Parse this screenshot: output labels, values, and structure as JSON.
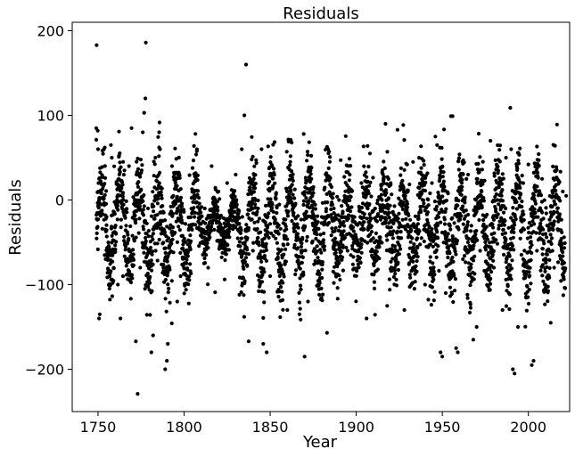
{
  "chart_data": {
    "type": "scatter",
    "title": "Residuals",
    "xlabel": "Year",
    "ylabel": "Residuals",
    "xlim": [
      1735,
      2024
    ],
    "ylim": [
      -250,
      210
    ],
    "xticks": [
      1750,
      1800,
      1850,
      1900,
      1950,
      2000
    ],
    "yticks": [
      -200,
      -100,
      0,
      100,
      200
    ],
    "xtick_labels": [
      "1750",
      "1800",
      "1850",
      "1900",
      "1950",
      "2000"
    ],
    "ytick_labels": [
      "−200",
      "−100",
      "0",
      "100",
      "200"
    ],
    "grid": false,
    "marker_color": "#000000",
    "anchor_points": [
      [
        1749.2,
        183
      ],
      [
        1749.0,
        85
      ],
      [
        1749.8,
        82
      ],
      [
        1750.0,
        60
      ],
      [
        1750.3,
        20
      ],
      [
        1750.6,
        -140
      ],
      [
        1751.0,
        -135
      ],
      [
        1755.0,
        -20
      ],
      [
        1757.5,
        65
      ],
      [
        1758.0,
        50
      ],
      [
        1760.5,
        -40
      ],
      [
        1761.5,
        -100
      ],
      [
        1763.0,
        -140
      ],
      [
        1764.5,
        -90
      ],
      [
        1768.0,
        40
      ],
      [
        1769.5,
        85
      ],
      [
        1772.0,
        -167
      ],
      [
        1773.0,
        -229
      ],
      [
        1774.5,
        -80
      ],
      [
        1776.0,
        80
      ],
      [
        1776.8,
        103
      ],
      [
        1777.5,
        120
      ],
      [
        1777.8,
        186
      ],
      [
        1779.0,
        -10
      ],
      [
        1781.0,
        -180
      ],
      [
        1782.0,
        -160
      ],
      [
        1783.5,
        -60
      ],
      [
        1785.5,
        80
      ],
      [
        1786.0,
        60
      ],
      [
        1786.5,
        15
      ],
      [
        1788.0,
        -80
      ],
      [
        1789.0,
        -200
      ],
      [
        1790.0,
        -190
      ],
      [
        1790.5,
        -170
      ],
      [
        1791.5,
        -80
      ],
      [
        1793.0,
        40
      ],
      [
        1796.0,
        -120
      ],
      [
        1798.0,
        -90
      ],
      [
        1800.0,
        -60
      ],
      [
        1803.0,
        -30
      ],
      [
        1806.0,
        -20
      ],
      [
        1812.0,
        -10
      ],
      [
        1814.0,
        -80
      ],
      [
        1816.0,
        40
      ],
      [
        1818.0,
        -109
      ],
      [
        1820.0,
        10
      ],
      [
        1825.0,
        20
      ],
      [
        1830.0,
        30
      ],
      [
        1833.5,
        60
      ],
      [
        1835.0,
        100
      ],
      [
        1836.0,
        160
      ],
      [
        1837.5,
        -167
      ],
      [
        1840.0,
        -60
      ],
      [
        1843.0,
        -10
      ],
      [
        1845.0,
        60
      ],
      [
        1846.0,
        -170
      ],
      [
        1848.0,
        -180
      ],
      [
        1850.0,
        -90
      ],
      [
        1855.0,
        -40
      ],
      [
        1860.0,
        -130
      ],
      [
        1862.0,
        10
      ],
      [
        1866.0,
        -40
      ],
      [
        1868.0,
        -60
      ],
      [
        1869.5,
        78
      ],
      [
        1870.0,
        -185
      ],
      [
        1872.0,
        -120
      ],
      [
        1875.0,
        -10
      ],
      [
        1880.0,
        -20
      ],
      [
        1883.0,
        -157
      ],
      [
        1887.0,
        -10
      ],
      [
        1890.0,
        0
      ],
      [
        1891.0,
        47
      ],
      [
        1895.0,
        -60
      ],
      [
        1898.0,
        -20
      ],
      [
        1903.0,
        20
      ],
      [
        1906.0,
        -140
      ],
      [
        1908.0,
        55
      ],
      [
        1911.0,
        -10
      ],
      [
        1914.0,
        -20
      ],
      [
        1917.0,
        90
      ],
      [
        1918.0,
        -125
      ],
      [
        1920.0,
        20
      ],
      [
        1924.0,
        83
      ],
      [
        1928.0,
        -130
      ],
      [
        1930.0,
        10
      ],
      [
        1933.0,
        45
      ],
      [
        1936.0,
        -40
      ],
      [
        1940.0,
        -100
      ],
      [
        1944.0,
        20
      ],
      [
        1946.0,
        75
      ],
      [
        1947.0,
        65
      ],
      [
        1949.0,
        -180
      ],
      [
        1950.0,
        -185
      ],
      [
        1952.0,
        -110
      ],
      [
        1955.0,
        99
      ],
      [
        1956.0,
        99
      ],
      [
        1958.0,
        -175
      ],
      [
        1959.0,
        -180
      ],
      [
        1962.0,
        -70
      ],
      [
        1965.0,
        30
      ],
      [
        1968.0,
        -165
      ],
      [
        1970.0,
        -150
      ],
      [
        1972.0,
        -60
      ],
      [
        1975.0,
        -20
      ],
      [
        1978.0,
        70
      ],
      [
        1980.0,
        -80
      ],
      [
        1983.0,
        -30
      ],
      [
        1985.0,
        -130
      ],
      [
        1987.0,
        50
      ],
      [
        1989.5,
        109
      ],
      [
        1990.0,
        60
      ],
      [
        1991.0,
        -200
      ],
      [
        1992.0,
        -205
      ],
      [
        1994.0,
        -150
      ],
      [
        1997.0,
        20
      ],
      [
        2000.0,
        42
      ],
      [
        2002.0,
        -195
      ],
      [
        2003.0,
        -190
      ],
      [
        2005.0,
        -60
      ],
      [
        2008.0,
        25
      ],
      [
        2010.0,
        -40
      ],
      [
        2013.0,
        -145
      ],
      [
        2015.0,
        -80
      ],
      [
        2018.0,
        -20
      ],
      [
        2020.0,
        10
      ],
      [
        2022.0,
        5
      ]
    ],
    "base_cycle_years": 11,
    "seed": 7
  }
}
